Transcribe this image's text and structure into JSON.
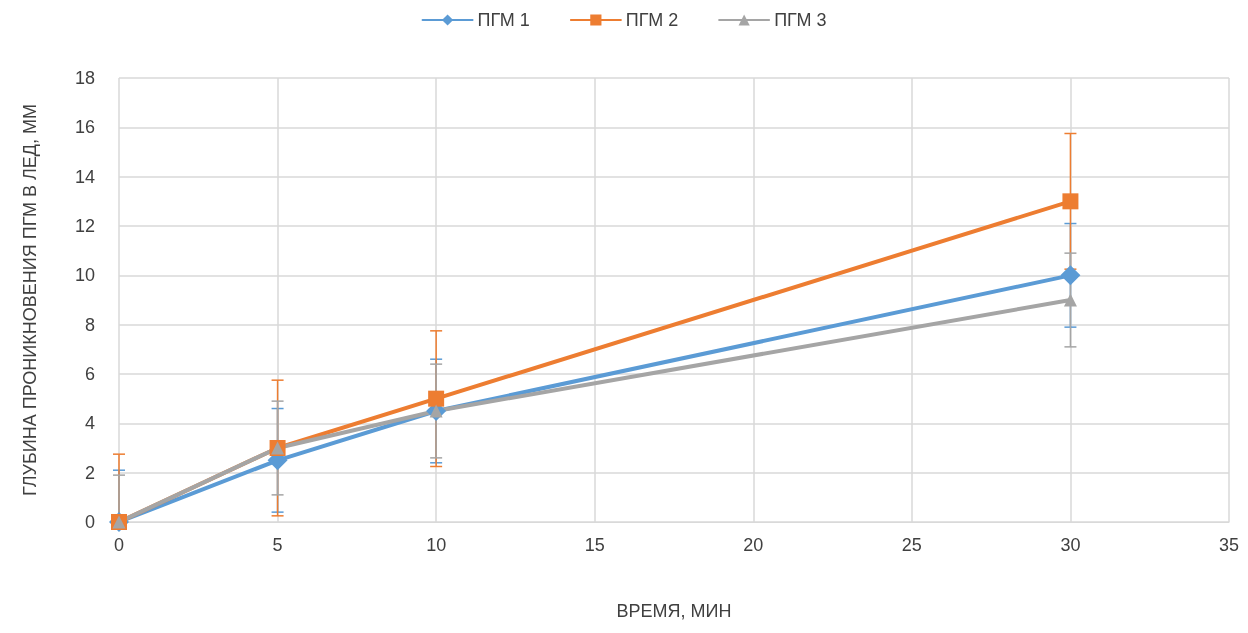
{
  "chart_data": {
    "type": "line",
    "xlabel": "ВРЕМЯ, МИН",
    "ylabel": "ГЛУБИНА ПРОНИКНОВЕНИЯ ПГМ В ЛЕД, ММ",
    "x": [
      0,
      5,
      10,
      30
    ],
    "series": [
      {
        "name": "ПГМ 1",
        "color": "#5b9bd5",
        "marker": "diamond",
        "values": [
          0,
          2.5,
          4.5,
          10
        ],
        "errors": [
          [
            0,
            2.1
          ],
          2.1,
          2.1,
          2.1
        ]
      },
      {
        "name": "ПГМ 2",
        "color": "#ed7d31",
        "marker": "square",
        "values": [
          0,
          3,
          5,
          13
        ],
        "errors": [
          [
            0,
            2.75
          ],
          2.75,
          2.75,
          2.75
        ]
      },
      {
        "name": "ПГМ 3",
        "color": "#a5a5a5",
        "marker": "triangle",
        "values": [
          0,
          3,
          4.5,
          9
        ],
        "errors": [
          [
            0,
            1.9
          ],
          1.9,
          1.9,
          1.9
        ]
      }
    ],
    "xlim": [
      0,
      35
    ],
    "xticks": [
      0,
      5,
      10,
      15,
      20,
      25,
      30,
      35
    ],
    "ylim": [
      0,
      18
    ],
    "yticks": [
      0,
      2,
      4,
      6,
      8,
      10,
      12,
      14,
      16,
      18
    ],
    "grid": true,
    "legend": "top",
    "line_style": "solid"
  }
}
